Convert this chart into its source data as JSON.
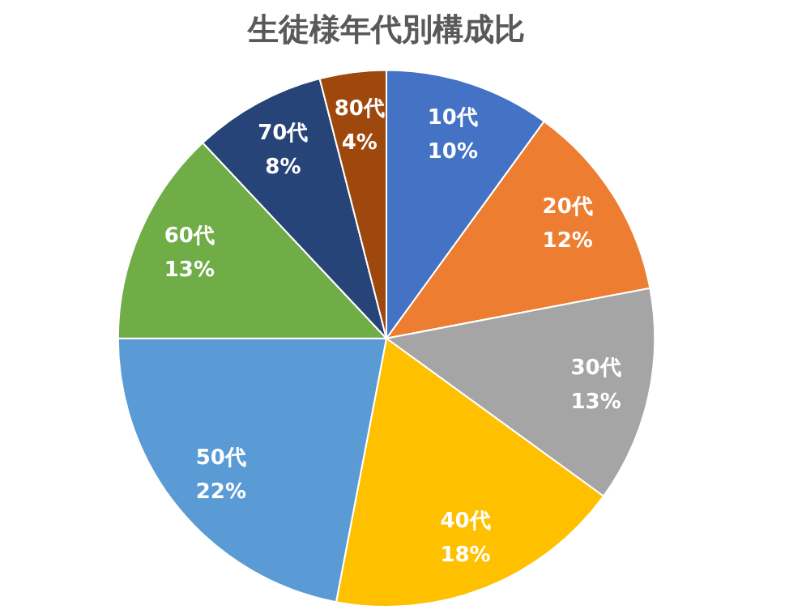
{
  "chart_data": {
    "type": "pie",
    "title": "生徒様年代別構成比",
    "categories": [
      "10代",
      "20代",
      "30代",
      "40代",
      "50代",
      "60代",
      "70代",
      "80代"
    ],
    "values": [
      10,
      12,
      13,
      18,
      22,
      13,
      8,
      4
    ],
    "value_labels": [
      "10%",
      "12%",
      "13%",
      "18%",
      "22%",
      "13%",
      "8%",
      "4%"
    ],
    "colors": [
      "#4472c4",
      "#ed7d31",
      "#a5a5a5",
      "#ffc000",
      "#5b9bd5",
      "#70ad47",
      "#264478",
      "#9e480e"
    ],
    "legend": false
  }
}
